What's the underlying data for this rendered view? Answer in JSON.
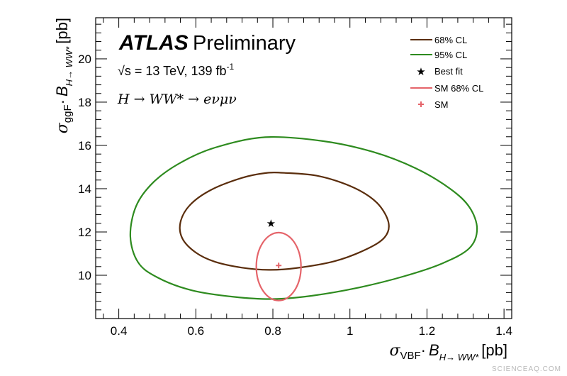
{
  "chart_data": {
    "type": "contour",
    "experiment": "ATLAS",
    "status": "Preliminary",
    "energy_label": "√s = 13 TeV, 139 fb",
    "lumi_exp": "-1",
    "process_label": "H → WW* → eνμν",
    "xlabel": {
      "sigma": "σ",
      "sigma_sub": "VBF",
      "dot": "·",
      "B": "B",
      "B_sub": "H→ WW*",
      "unit": "[pb]"
    },
    "ylabel": {
      "sigma": "σ",
      "sigma_sub": "ggF",
      "dot": "·",
      "B": "B",
      "B_sub": "H→ WW*",
      "unit": "[pb]"
    },
    "xlim": [
      0.34,
      1.42
    ],
    "ylim": [
      8.0,
      21.9
    ],
    "xticks": [
      "0.4",
      "0.6",
      "0.8",
      "1",
      "1.2",
      "1.4"
    ],
    "xtick_values": [
      0.4,
      0.6,
      0.8,
      1.0,
      1.2,
      1.4
    ],
    "yticks": [
      "10",
      "12",
      "14",
      "16",
      "18",
      "20"
    ],
    "ytick_values": [
      10,
      12,
      14,
      16,
      18,
      20
    ],
    "colors": {
      "cl68": "#5a2d0c",
      "cl95": "#2e8b1f",
      "sm68": "#e5646a",
      "best_fit": "#000000",
      "sm": "#e5646a"
    },
    "series": [
      {
        "name": "68% CL",
        "kind": "contour",
        "x": [
          0.83,
          0.92,
          1.01,
          1.07,
          1.1,
          1.09,
          1.04,
          0.96,
          0.86,
          0.79,
          0.72,
          0.65,
          0.6,
          0.565,
          0.56,
          0.585,
          0.64,
          0.72,
          0.78,
          0.83
        ],
        "y": [
          14.73,
          14.58,
          14.05,
          13.35,
          12.45,
          11.75,
          11.18,
          10.65,
          10.33,
          10.25,
          10.35,
          10.62,
          11.05,
          11.7,
          12.45,
          13.25,
          13.95,
          14.5,
          14.72,
          14.73
        ]
      },
      {
        "name": "95% CL",
        "kind": "contour",
        "x": [
          0.78,
          0.93,
          1.06,
          1.17,
          1.26,
          1.31,
          1.33,
          1.31,
          1.24,
          1.14,
          1.02,
          0.9,
          0.8,
          0.7,
          0.59,
          0.5,
          0.45,
          0.43,
          0.445,
          0.49,
          0.56,
          0.65,
          0.78
        ],
        "y": [
          16.38,
          16.2,
          15.7,
          14.95,
          14.0,
          13.15,
          12.15,
          11.25,
          10.55,
          9.95,
          9.42,
          9.05,
          8.9,
          9.0,
          9.3,
          9.9,
          10.6,
          11.8,
          13.2,
          14.3,
          15.2,
          15.9,
          16.38
        ]
      },
      {
        "name": "SM 68% CL",
        "kind": "ellipse",
        "cx": 0.815,
        "cy": 10.4,
        "rx": 0.058,
        "ry": 1.57
      },
      {
        "name": "Best fit",
        "kind": "point",
        "marker": "star",
        "x": 0.795,
        "y": 12.4
      },
      {
        "name": "SM",
        "kind": "point",
        "marker": "cross",
        "x": 0.815,
        "y": 10.45
      }
    ],
    "legend": {
      "placement": "top-right",
      "items": [
        {
          "label": "68% CL",
          "symbol": "line",
          "color": "#5a2d0c"
        },
        {
          "label": "95% CL",
          "symbol": "line",
          "color": "#2e8b1f"
        },
        {
          "label": "Best fit",
          "symbol": "star",
          "color": "#000000"
        },
        {
          "label": "SM 68% CL",
          "symbol": "line",
          "color": "#e5646a"
        },
        {
          "label": "SM",
          "symbol": "cross",
          "color": "#e5646a"
        }
      ]
    }
  },
  "watermark": "SCIENCEAQ.COM"
}
